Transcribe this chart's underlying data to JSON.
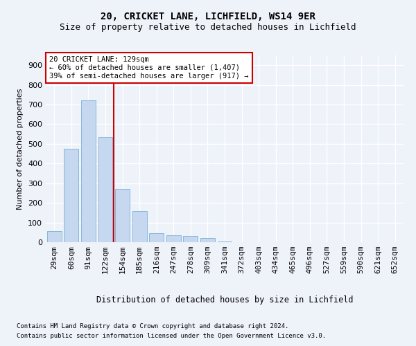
{
  "title1": "20, CRICKET LANE, LICHFIELD, WS14 9ER",
  "title2": "Size of property relative to detached houses in Lichfield",
  "xlabel": "Distribution of detached houses by size in Lichfield",
  "ylabel": "Number of detached properties",
  "categories": [
    "29sqm",
    "60sqm",
    "91sqm",
    "122sqm",
    "154sqm",
    "185sqm",
    "216sqm",
    "247sqm",
    "278sqm",
    "309sqm",
    "341sqm",
    "372sqm",
    "403sqm",
    "434sqm",
    "465sqm",
    "496sqm",
    "527sqm",
    "559sqm",
    "590sqm",
    "621sqm",
    "652sqm"
  ],
  "values": [
    55,
    475,
    720,
    535,
    270,
    160,
    45,
    35,
    30,
    20,
    5,
    0,
    0,
    0,
    0,
    0,
    0,
    0,
    0,
    0,
    0
  ],
  "bar_color": "#c5d8ef",
  "bar_edge_color": "#7bafd4",
  "vline_x": 3.5,
  "annotation_title": "20 CRICKET LANE: 129sqm",
  "annotation_line1": "← 60% of detached houses are smaller (1,407)",
  "annotation_line2": "39% of semi-detached houses are larger (917) →",
  "footnote1": "Contains HM Land Registry data © Crown copyright and database right 2024.",
  "footnote2": "Contains public sector information licensed under the Open Government Licence v3.0.",
  "ylim": [
    0,
    950
  ],
  "yticks": [
    0,
    100,
    200,
    300,
    400,
    500,
    600,
    700,
    800,
    900
  ],
  "bg_color": "#eef2f9",
  "plot_bg_color": "#eef2f9",
  "grid_color": "#ffffff",
  "annotation_box_color": "#cc0000",
  "vline_color": "#cc0000",
  "title1_fontsize": 10,
  "title2_fontsize": 9,
  "ylabel_fontsize": 8,
  "tick_fontsize": 8,
  "ann_fontsize": 7.5,
  "xlabel_fontsize": 8.5,
  "footnote_fontsize": 6.5
}
